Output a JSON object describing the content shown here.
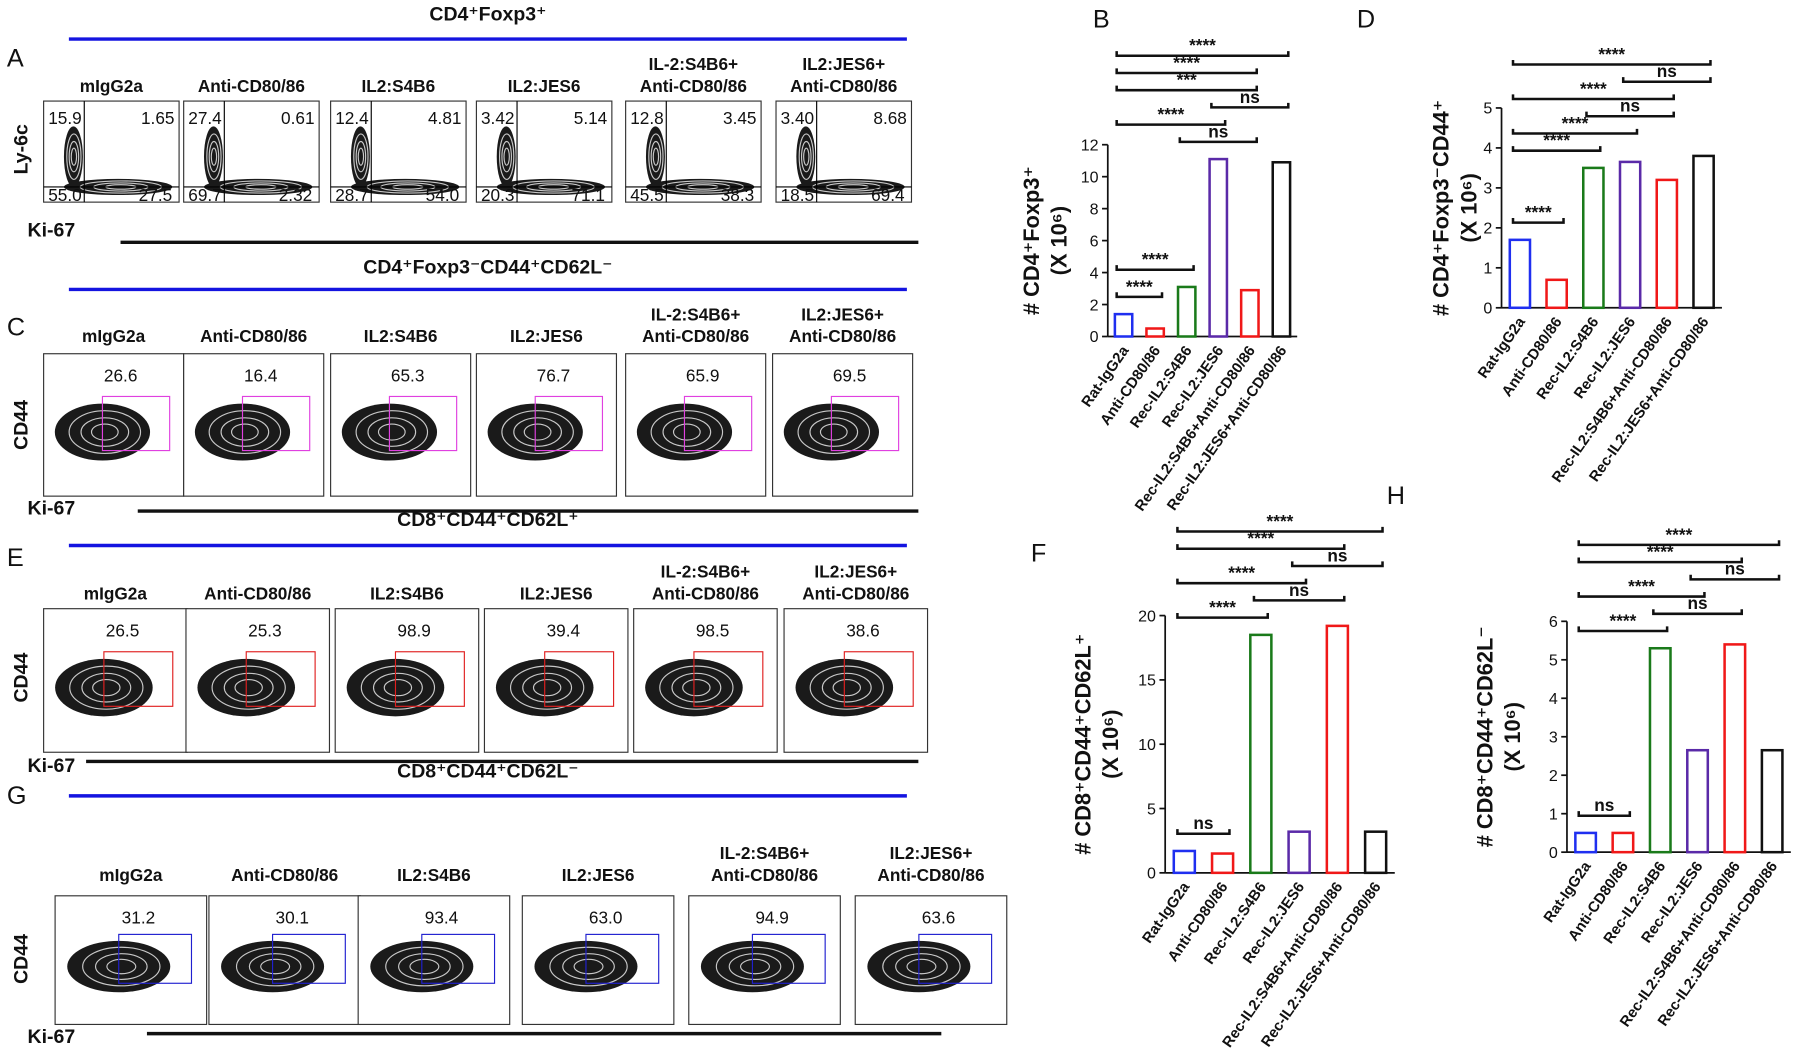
{
  "flow_panels": [
    {
      "label": "A",
      "title": "CD4⁺Foxp3⁺",
      "y_label": "Ly-6c",
      "x_label": "Ki-67",
      "rule_color": "#1414e0",
      "plots": [
        {
          "name": [
            "mIgG2a"
          ],
          "quadrants": [
            "15.9",
            "1.65",
            "55.0",
            "27.5"
          ]
        },
        {
          "name": [
            "Anti-CD80/86"
          ],
          "quadrants": [
            "27.4",
            "0.61",
            "69.7",
            "2.32"
          ]
        },
        {
          "name": [
            "IL2:S4B6"
          ],
          "quadrants": [
            "12.4",
            "4.81",
            "28.7",
            "54.0"
          ]
        },
        {
          "name": [
            "IL2:JES6"
          ],
          "quadrants": [
            "3.42",
            "5.14",
            "20.3",
            "71.1"
          ]
        },
        {
          "name": [
            "IL-2:S4B6+",
            "Anti-CD80/86"
          ],
          "quadrants": [
            "12.8",
            "3.45",
            "45.5",
            "38.3"
          ]
        },
        {
          "name": [
            "IL2:JES6+",
            "Anti-CD80/86"
          ],
          "quadrants": [
            "3.40",
            "8.68",
            "18.5",
            "69.4"
          ]
        }
      ]
    },
    {
      "label": "C",
      "title": "CD4⁺Foxp3⁻CD44⁺CD62L⁻",
      "y_label": "CD44",
      "x_label": "Ki-67",
      "rule_color": "#1414e0",
      "gate_color": "#e040e0",
      "plots": [
        {
          "name": [
            "mIgG2a"
          ],
          "value": "26.6"
        },
        {
          "name": [
            "Anti-CD80/86"
          ],
          "value": "16.4"
        },
        {
          "name": [
            "IL2:S4B6"
          ],
          "value": "65.3"
        },
        {
          "name": [
            "IL2:JES6"
          ],
          "value": "76.7"
        },
        {
          "name": [
            "IL-2:S4B6+",
            "Anti-CD80/86"
          ],
          "value": "65.9"
        },
        {
          "name": [
            "IL2:JES6+",
            "Anti-CD80/86"
          ],
          "value": "69.5"
        }
      ]
    },
    {
      "label": "E",
      "title": "CD8⁺CD44⁺CD62L⁺",
      "y_label": "CD44",
      "x_label": "Ki-67",
      "rule_color": "#1414e0",
      "gate_color": "#e02020",
      "plots": [
        {
          "name": [
            "mIgG2a"
          ],
          "value": "26.5"
        },
        {
          "name": [
            "Anti-CD80/86"
          ],
          "value": "25.3"
        },
        {
          "name": [
            "IL2:S4B6"
          ],
          "value": "98.9"
        },
        {
          "name": [
            "IL2:JES6"
          ],
          "value": "39.4"
        },
        {
          "name": [
            "IL-2:S4B6+",
            "Anti-CD80/86"
          ],
          "value": "98.5"
        },
        {
          "name": [
            "IL2:JES6+",
            "Anti-CD80/86"
          ],
          "value": "38.6"
        }
      ]
    },
    {
      "label": "G",
      "title": "CD8⁺CD44⁺CD62L⁻",
      "y_label": "CD44",
      "x_label": "Ki-67",
      "rule_color": "#1414e0",
      "gate_color": "#2020d0",
      "plots": [
        {
          "name": [
            "mIgG2a"
          ],
          "value": "31.2"
        },
        {
          "name": [
            "Anti-CD80/86"
          ],
          "value": "30.1"
        },
        {
          "name": [
            "IL2:S4B6"
          ],
          "value": "93.4"
        },
        {
          "name": [
            "IL2:JES6"
          ],
          "value": "63.0"
        },
        {
          "name": [
            "IL-2:S4B6+",
            "Anti-CD80/86"
          ],
          "value": "94.9"
        },
        {
          "name": [
            "IL2:JES6+",
            "Anti-CD80/86"
          ],
          "value": "63.6"
        }
      ]
    }
  ],
  "chart_data": [
    {
      "type": "bar",
      "label": "B",
      "ylabel": [
        "# CD4⁺Foxp3⁺",
        "(X 10⁶)"
      ],
      "categories": [
        "Rat-IgG2a",
        "Anti-CD80/86",
        "Rec-IL2:S4B6",
        "Rec-IL2:JES6",
        "Rec-IL2:S4B6+Anti-CD80/86",
        "Rec-IL2:JES6+Anti-CD80/86"
      ],
      "values": [
        1.4,
        0.5,
        3.1,
        11.1,
        2.9,
        10.9
      ],
      "colors": [
        "#1f2ff0",
        "#f01818",
        "#1a7a1a",
        "#5a2aa8",
        "#f01818",
        "#111111"
      ],
      "ylim": [
        0,
        12
      ],
      "yticks": [
        0,
        2,
        4,
        6,
        8,
        10,
        12
      ],
      "brackets": [
        {
          "from": 0,
          "to": 1,
          "label": "****"
        },
        {
          "from": 0,
          "to": 2,
          "label": "****"
        },
        {
          "from": 2,
          "to": 4,
          "label": "ns"
        },
        {
          "from": 0,
          "to": 3,
          "label": "****"
        },
        {
          "from": 3,
          "to": 5,
          "label": "ns"
        },
        {
          "from": 0,
          "to": 4,
          "label": "***"
        },
        {
          "from": 0,
          "to": 4,
          "label": "****"
        },
        {
          "from": 0,
          "to": 5,
          "label": "****"
        }
      ]
    },
    {
      "type": "bar",
      "label": "D",
      "ylabel": [
        "# CD4⁺Foxp3⁻CD44⁺",
        "(X 10⁶)"
      ],
      "categories": [
        "Rat-IgG2a",
        "Anti-CD80/86",
        "Rec-IL2:S4B6",
        "Rec-IL2:JES6",
        "Rec-IL2:S4B6+Anti-CD80/86",
        "Rec-IL2:JES6+Anti-CD80/86"
      ],
      "values": [
        1.7,
        0.7,
        3.5,
        3.65,
        3.2,
        3.8
      ],
      "colors": [
        "#1f2ff0",
        "#f01818",
        "#1a7a1a",
        "#5a2aa8",
        "#f01818",
        "#111111"
      ],
      "ylim": [
        0,
        5
      ],
      "yticks": [
        0,
        1,
        2,
        3,
        4,
        5
      ],
      "brackets": [
        {
          "from": 0,
          "to": 1,
          "label": "****"
        },
        {
          "from": 0,
          "to": 2,
          "label": "****"
        },
        {
          "from": 0,
          "to": 3,
          "label": "****"
        },
        {
          "from": 2,
          "to": 4,
          "label": "ns"
        },
        {
          "from": 0,
          "to": 4,
          "label": "****"
        },
        {
          "from": 3,
          "to": 5,
          "label": "ns"
        },
        {
          "from": 0,
          "to": 5,
          "label": "****"
        }
      ]
    },
    {
      "type": "bar",
      "label": "F",
      "ylabel": [
        "# CD8⁺CD44⁺CD62L⁺",
        "(X 10⁶)"
      ],
      "categories": [
        "Rat-IgG2a",
        "Anti-CD80/86",
        "Rec-IL2:S4B6",
        "Rec-IL2:JES6",
        "Rec-IL2:S4B6+Anti-CD80/86",
        "Rec-IL2:JES6+Anti-CD80/86"
      ],
      "values": [
        1.7,
        1.5,
        18.5,
        3.2,
        19.2,
        3.2
      ],
      "colors": [
        "#1f2ff0",
        "#f01818",
        "#1a7a1a",
        "#5a2aa8",
        "#f01818",
        "#111111"
      ],
      "ylim": [
        0,
        20
      ],
      "yticks": [
        0,
        5,
        10,
        15,
        20
      ],
      "brackets": [
        {
          "from": 0,
          "to": 1,
          "label": "ns"
        },
        {
          "from": 0,
          "to": 2,
          "label": "****"
        },
        {
          "from": 2,
          "to": 4,
          "label": "ns"
        },
        {
          "from": 0,
          "to": 3,
          "label": "****"
        },
        {
          "from": 3,
          "to": 5,
          "label": "ns"
        },
        {
          "from": 0,
          "to": 4,
          "label": "****"
        },
        {
          "from": 0,
          "to": 5,
          "label": "****"
        }
      ]
    },
    {
      "type": "bar",
      "label": "H",
      "ylabel": [
        "# CD8⁺CD44⁺CD62L⁻",
        "(X 10⁶)"
      ],
      "categories": [
        "Rat-IgG2a",
        "Anti-CD80/86",
        "Rec-IL2:S4B6",
        "Rec-IL2:JES6",
        "Rec-IL2:S4B6+Anti-CD80/86",
        "Rec-IL2:JES6+Anti-CD80/86"
      ],
      "values": [
        0.5,
        0.5,
        5.3,
        2.65,
        5.4,
        2.65
      ],
      "colors": [
        "#1f2ff0",
        "#f01818",
        "#1a7a1a",
        "#5a2aa8",
        "#f01818",
        "#111111"
      ],
      "ylim": [
        0,
        6
      ],
      "yticks": [
        0,
        1,
        2,
        3,
        4,
        5,
        6
      ],
      "brackets": [
        {
          "from": 0,
          "to": 1,
          "label": "ns"
        },
        {
          "from": 0,
          "to": 2,
          "label": "****"
        },
        {
          "from": 2,
          "to": 4,
          "label": "ns"
        },
        {
          "from": 0,
          "to": 3,
          "label": "****"
        },
        {
          "from": 3,
          "to": 5,
          "label": "ns"
        },
        {
          "from": 0,
          "to": 4,
          "label": "****"
        },
        {
          "from": 0,
          "to": 5,
          "label": "****"
        }
      ]
    }
  ]
}
